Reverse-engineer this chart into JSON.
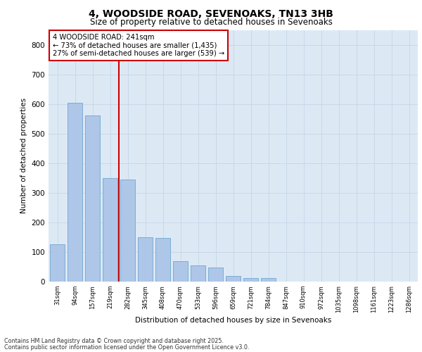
{
  "title_line1": "4, WOODSIDE ROAD, SEVENOAKS, TN13 3HB",
  "title_line2": "Size of property relative to detached houses in Sevenoaks",
  "xlabel": "Distribution of detached houses by size in Sevenoaks",
  "ylabel": "Number of detached properties",
  "categories": [
    "31sqm",
    "94sqm",
    "157sqm",
    "219sqm",
    "282sqm",
    "345sqm",
    "408sqm",
    "470sqm",
    "533sqm",
    "596sqm",
    "659sqm",
    "721sqm",
    "784sqm",
    "847sqm",
    "910sqm",
    "972sqm",
    "1035sqm",
    "1098sqm",
    "1161sqm",
    "1223sqm",
    "1286sqm"
  ],
  "values": [
    125,
    605,
    560,
    350,
    345,
    150,
    148,
    70,
    55,
    48,
    20,
    12,
    13,
    0,
    0,
    0,
    0,
    0,
    0,
    0,
    0
  ],
  "bar_color": "#aec6e8",
  "bar_edge_color": "#6fa8d0",
  "vline_x": 3.5,
  "annotation_text": "4 WOODSIDE ROAD: 241sqm\n← 73% of detached houses are smaller (1,435)\n27% of semi-detached houses are larger (539) →",
  "annotation_box_color": "#ffffff",
  "annotation_box_edge": "#cc0000",
  "vline_color": "#cc0000",
  "grid_color": "#c8d8e8",
  "bg_color": "#dce9f5",
  "footer_line1": "Contains HM Land Registry data © Crown copyright and database right 2025.",
  "footer_line2": "Contains public sector information licensed under the Open Government Licence v3.0.",
  "ylim": [
    0,
    850
  ],
  "yticks": [
    0,
    100,
    200,
    300,
    400,
    500,
    600,
    700,
    800
  ]
}
